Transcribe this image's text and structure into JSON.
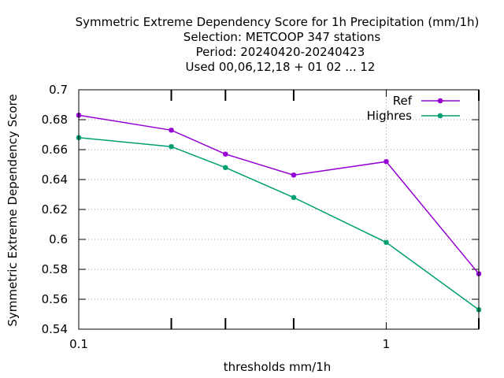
{
  "chart_data": {
    "type": "line",
    "title_lines": [
      "Symmetric Extreme Dependency Score  for 1h Precipitation (mm/1h)",
      "Selection: METCOOP    347 stations",
      "Period: 20240420-20240423",
      "Used  00,06,12,18 + 01 02 ... 12"
    ],
    "xlabel": "thresholds mm/1h",
    "ylabel": "Symmetric Extreme Dependency Score",
    "xscale": "log",
    "xlim": [
      0.1,
      2
    ],
    "ylim": [
      0.54,
      0.7
    ],
    "x_tick_labels": [
      {
        "value": 0.1,
        "label": "0.1"
      },
      {
        "value": 1,
        "label": "1"
      }
    ],
    "x_minor_ticks": [
      0.2,
      0.3,
      0.5,
      2
    ],
    "y_ticks": [
      0.54,
      0.56,
      0.58,
      0.6,
      0.62,
      0.64,
      0.66,
      0.68,
      0.7
    ],
    "y_tick_labels": [
      "0.54",
      "0.56",
      "0.58",
      "0.6",
      "0.62",
      "0.64",
      "0.66",
      "0.68",
      "0.7"
    ],
    "grid": true,
    "legend_position": "top-right",
    "x": [
      0.1,
      0.2,
      0.3,
      0.5,
      1,
      2
    ],
    "series": [
      {
        "name": "Ref",
        "color": "#9400d3",
        "values": [
          0.683,
          0.673,
          0.657,
          0.643,
          0.652,
          0.577
        ]
      },
      {
        "name": "Highres",
        "color": "#009e73",
        "values": [
          0.668,
          0.662,
          0.648,
          0.628,
          0.598,
          0.553
        ]
      }
    ]
  }
}
